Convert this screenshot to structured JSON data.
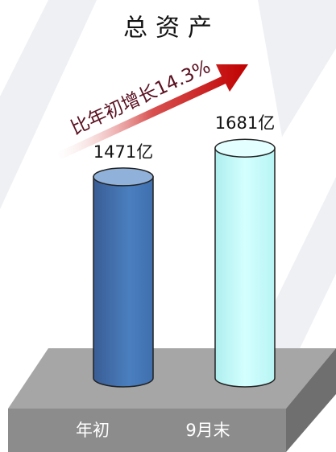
{
  "chart_data": {
    "type": "bar",
    "title": "总资产",
    "categories": [
      "年初",
      "9月末"
    ],
    "values": [
      1471,
      1681
    ],
    "value_labels": [
      "1471亿",
      "1681亿"
    ],
    "colors": [
      "#4677b5",
      "#c6fbfb"
    ],
    "annotation": "比年初增长14.3%"
  }
}
